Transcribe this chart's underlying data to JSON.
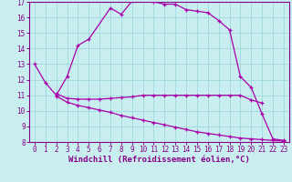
{
  "xlabel": "Windchill (Refroidissement éolien,°C)",
  "background_color": "#c8eef0",
  "grid_color": "#a0d8dc",
  "line_color": "#aa00aa",
  "xlim": [
    -0.5,
    23.5
  ],
  "ylim": [
    8,
    17
  ],
  "yticks": [
    8,
    9,
    10,
    11,
    12,
    13,
    14,
    15,
    16,
    17
  ],
  "xticks": [
    0,
    1,
    2,
    3,
    4,
    5,
    6,
    7,
    8,
    9,
    10,
    11,
    12,
    13,
    14,
    15,
    16,
    17,
    18,
    19,
    20,
    21,
    22,
    23
  ],
  "line1_x": [
    0,
    1,
    2,
    3,
    4,
    5,
    7,
    8,
    9,
    10,
    11,
    12,
    13,
    14,
    15,
    16,
    17,
    18,
    19,
    20,
    21,
    22,
    23
  ],
  "line1_y": [
    13.0,
    11.8,
    11.0,
    12.2,
    14.2,
    14.6,
    16.6,
    16.2,
    17.05,
    17.1,
    17.0,
    16.85,
    16.85,
    16.5,
    16.4,
    16.3,
    15.8,
    15.2,
    12.2,
    11.5,
    9.8,
    8.2,
    8.1
  ],
  "line2_x": [
    2,
    3,
    4,
    5,
    6,
    7,
    8,
    9,
    10,
    11,
    12,
    13,
    14,
    15,
    16,
    17,
    18,
    19,
    20,
    21
  ],
  "line2_y": [
    11.1,
    10.8,
    10.75,
    10.75,
    10.75,
    10.8,
    10.85,
    10.9,
    11.0,
    11.0,
    11.0,
    11.0,
    11.0,
    11.0,
    11.0,
    11.0,
    11.0,
    11.0,
    10.7,
    10.5
  ],
  "line3_x": [
    2,
    3,
    4,
    5,
    6,
    7,
    8,
    9,
    10,
    11,
    12,
    13,
    14,
    15,
    16,
    17,
    18,
    19,
    20,
    21,
    22,
    23
  ],
  "line3_y": [
    10.95,
    10.55,
    10.35,
    10.2,
    10.05,
    9.9,
    9.7,
    9.55,
    9.4,
    9.25,
    9.1,
    8.95,
    8.8,
    8.65,
    8.55,
    8.45,
    8.35,
    8.25,
    8.2,
    8.15,
    8.1,
    8.05
  ],
  "markersize": 3,
  "linewidth": 0.9,
  "tick_fontsize": 5.5,
  "xlabel_fontsize": 6.5
}
